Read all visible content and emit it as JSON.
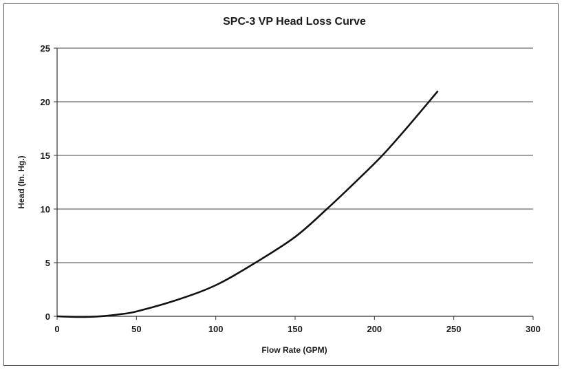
{
  "chart_data": {
    "type": "line",
    "title": "SPC-3 VP Head Loss Curve",
    "xlabel": "Flow Rate (GPM)",
    "ylabel": "Head (In. Hg.)",
    "xlim": [
      0,
      300
    ],
    "ylim": [
      0,
      25
    ],
    "xticks": [
      0,
      50,
      100,
      150,
      200,
      250,
      300
    ],
    "yticks": [
      0,
      5,
      10,
      15,
      20,
      25
    ],
    "grid": "horizontal",
    "series": [
      {
        "name": "Head Loss",
        "color": "#111111",
        "x": [
          0,
          10,
          20,
          30,
          40,
          50,
          75,
          100,
          125,
          150,
          170,
          190,
          205,
          220,
          240
        ],
        "y": [
          0,
          -0.05,
          -0.05,
          0.03,
          0.2,
          0.45,
          1.5,
          2.9,
          5.0,
          7.4,
          10,
          12.8,
          15,
          17.5,
          21
        ]
      }
    ]
  }
}
